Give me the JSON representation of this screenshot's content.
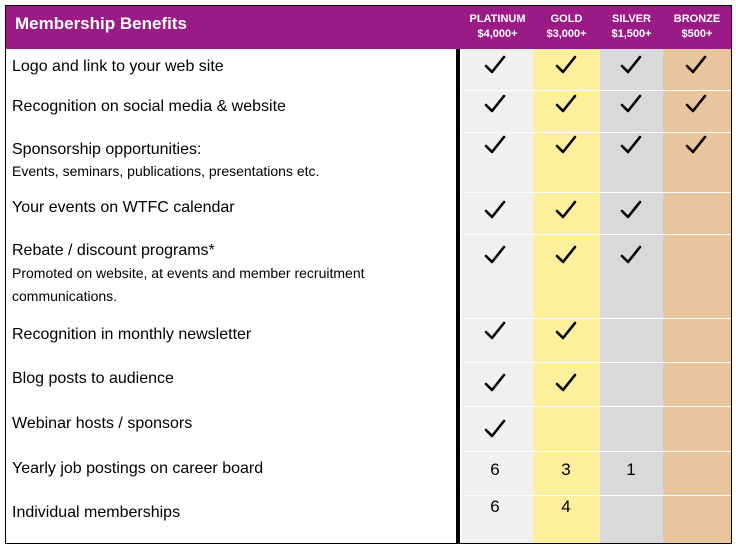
{
  "header": {
    "title": "Membership Benefits"
  },
  "tiers": [
    {
      "name": "PLATINUM",
      "price": "$4,000+"
    },
    {
      "name": "GOLD",
      "price": "$3,000+"
    },
    {
      "name": "SILVER",
      "price": "$1,500+"
    },
    {
      "name": "BRONZE",
      "price": "$500+"
    }
  ],
  "rows": [
    {
      "label": "Logo and link to your web site",
      "values": [
        "✓",
        "✓",
        "✓",
        "✓"
      ]
    },
    {
      "label": "Recognition on social media & website",
      "values": [
        "✓",
        "✓",
        "✓",
        "✓"
      ]
    },
    {
      "label": "Sponsorship opportunities:",
      "sub": "Events, seminars, publications, presentations etc.",
      "values": [
        "✓",
        "✓",
        "✓",
        "✓"
      ]
    },
    {
      "label": "Your events on WTFC calendar",
      "values": [
        "✓",
        "✓",
        "✓",
        ""
      ]
    },
    {
      "label": "Rebate / discount programs*",
      "sub": "Promoted on website, at events and member recruitment communications.",
      "values": [
        "✓",
        "✓",
        "✓",
        ""
      ]
    },
    {
      "label": "Recognition in monthly newsletter",
      "values": [
        "✓",
        "✓",
        "",
        ""
      ]
    },
    {
      "label": "Blog posts to audience",
      "values": [
        "✓",
        "✓",
        "",
        ""
      ]
    },
    {
      "label": "Webinar hosts / sponsors",
      "values": [
        "✓",
        "",
        "",
        ""
      ]
    },
    {
      "label": "Yearly job postings on career board",
      "values": [
        "6",
        "3",
        "1",
        ""
      ]
    },
    {
      "label": "Individual memberships",
      "values": [
        "6",
        "4",
        "",
        ""
      ]
    }
  ],
  "colors": {
    "header": "#9a1a86",
    "platinum": "#f1f0ee",
    "gold": "#fdef9c",
    "silver": "#d9d9d9",
    "bronze": "#e8c49f"
  }
}
